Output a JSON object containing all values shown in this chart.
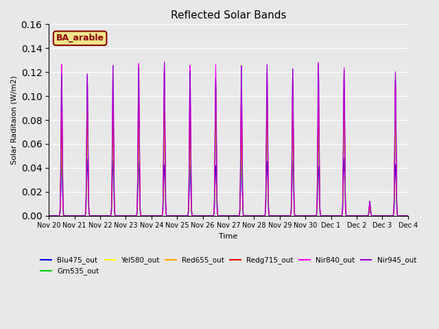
{
  "title": "Reflected Solar Bands",
  "xlabel": "Time",
  "ylabel": "Solar Raditaion (W/m2)",
  "ylim": [
    0,
    0.16
  ],
  "background_color": "#e8e8e8",
  "annotation_text": "BA_arable",
  "annotation_color": "#8B0000",
  "annotation_bg": "#f0e68c",
  "series": {
    "Blu475_out": {
      "color": "#0000ff",
      "peak": 0.047
    },
    "Grn535_out": {
      "color": "#00cc00",
      "peak": 0.079
    },
    "Yel580_out": {
      "color": "#ffff00",
      "peak": 0.086
    },
    "Red655_out": {
      "color": "#ffa500",
      "peak": 0.088
    },
    "Redg715_out": {
      "color": "#ff0000",
      "peak": 0.11
    },
    "Nir840_out": {
      "color": "#ff00ff",
      "peak": 0.128
    },
    "Nir945_out": {
      "color": "#9900cc",
      "peak": 0.128
    }
  },
  "xtick_labels": [
    "Nov 20",
    "Nov 21",
    "Nov 22",
    "Nov 23",
    "Nov 24",
    "Nov 25",
    "Nov 26",
    "Nov 27",
    "Nov 28",
    "Nov 29",
    "Nov 30",
    "Dec 1",
    "Dec 2",
    "Dec 3",
    "Dec 4"
  ],
  "num_days": 14,
  "samples_per_day": 96,
  "cloudy_day": 12
}
